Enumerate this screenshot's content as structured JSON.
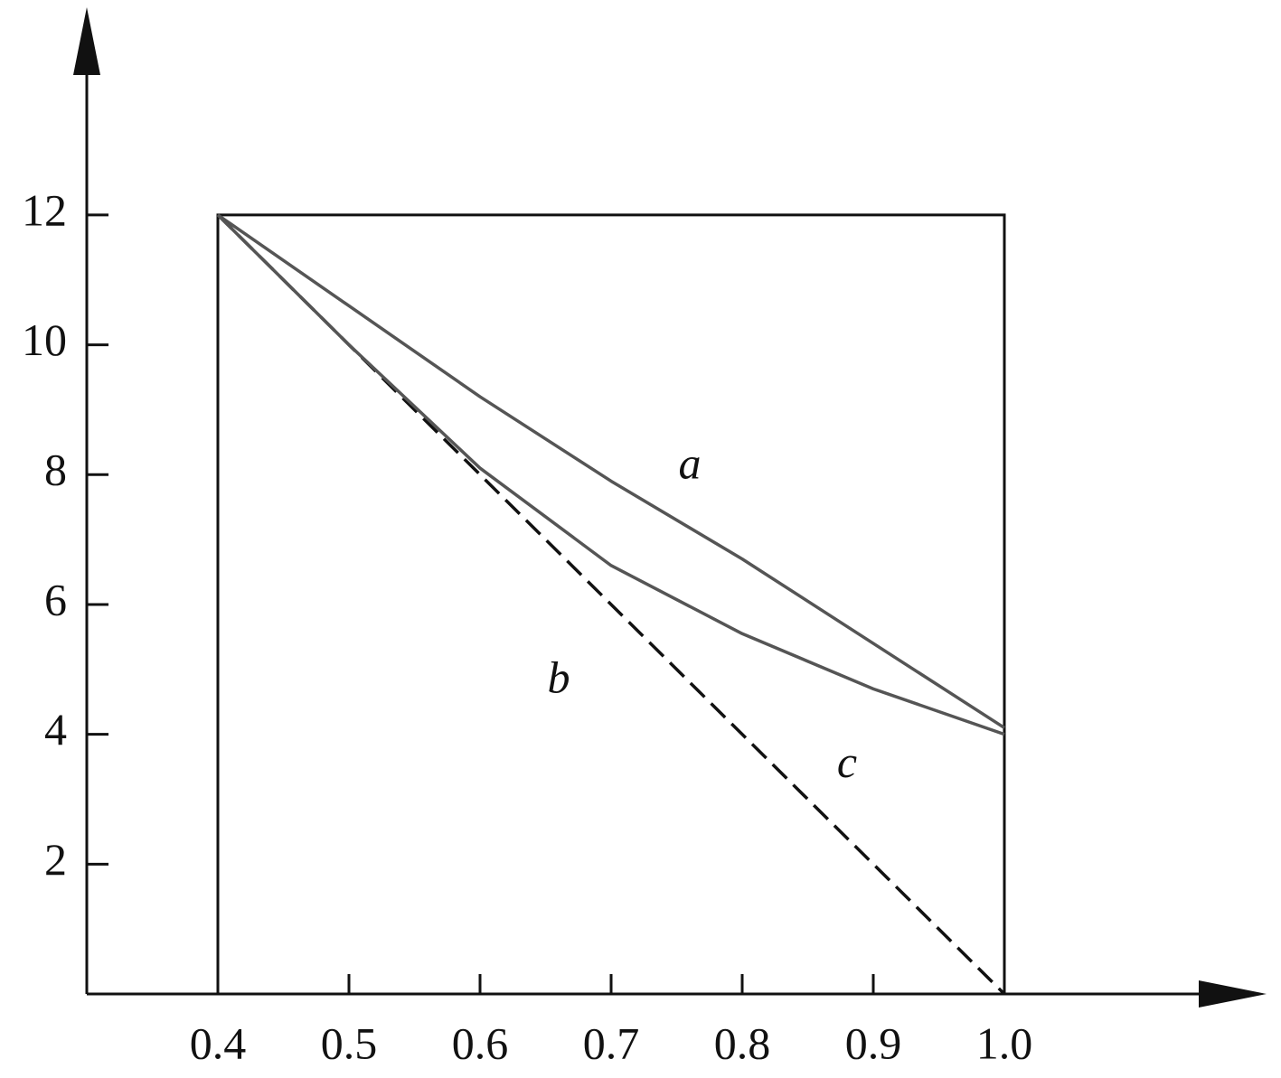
{
  "chart_data": {
    "type": "line",
    "x": [
      0.4,
      0.5,
      0.6,
      0.7,
      0.8,
      0.9,
      1.0
    ],
    "series": [
      {
        "color": "#555555",
        "style": "solid",
        "values": [
          12,
          10.6,
          9.2,
          7.9,
          6.7,
          5.4,
          4.1
        ]
      },
      {
        "color": "#111111",
        "style": "dashed",
        "values": [
          12,
          10,
          8,
          6,
          4,
          2,
          0
        ]
      },
      {
        "color": "#555555",
        "style": "solid",
        "values": [
          12,
          10.0,
          8.1,
          6.6,
          5.55,
          4.7,
          4.0
        ]
      }
    ],
    "annotations": [
      "a",
      "b",
      "c"
    ],
    "xlim": [
      0.3,
      1.2
    ],
    "ylim": [
      0,
      15.2
    ],
    "xticks": [
      0.4,
      0.5,
      0.6,
      0.7,
      0.8,
      0.9,
      {
        "value": 1.0,
        "label": "1.0"
      }
    ],
    "yticks": [
      2,
      4,
      6,
      8,
      10,
      12
    ]
  }
}
